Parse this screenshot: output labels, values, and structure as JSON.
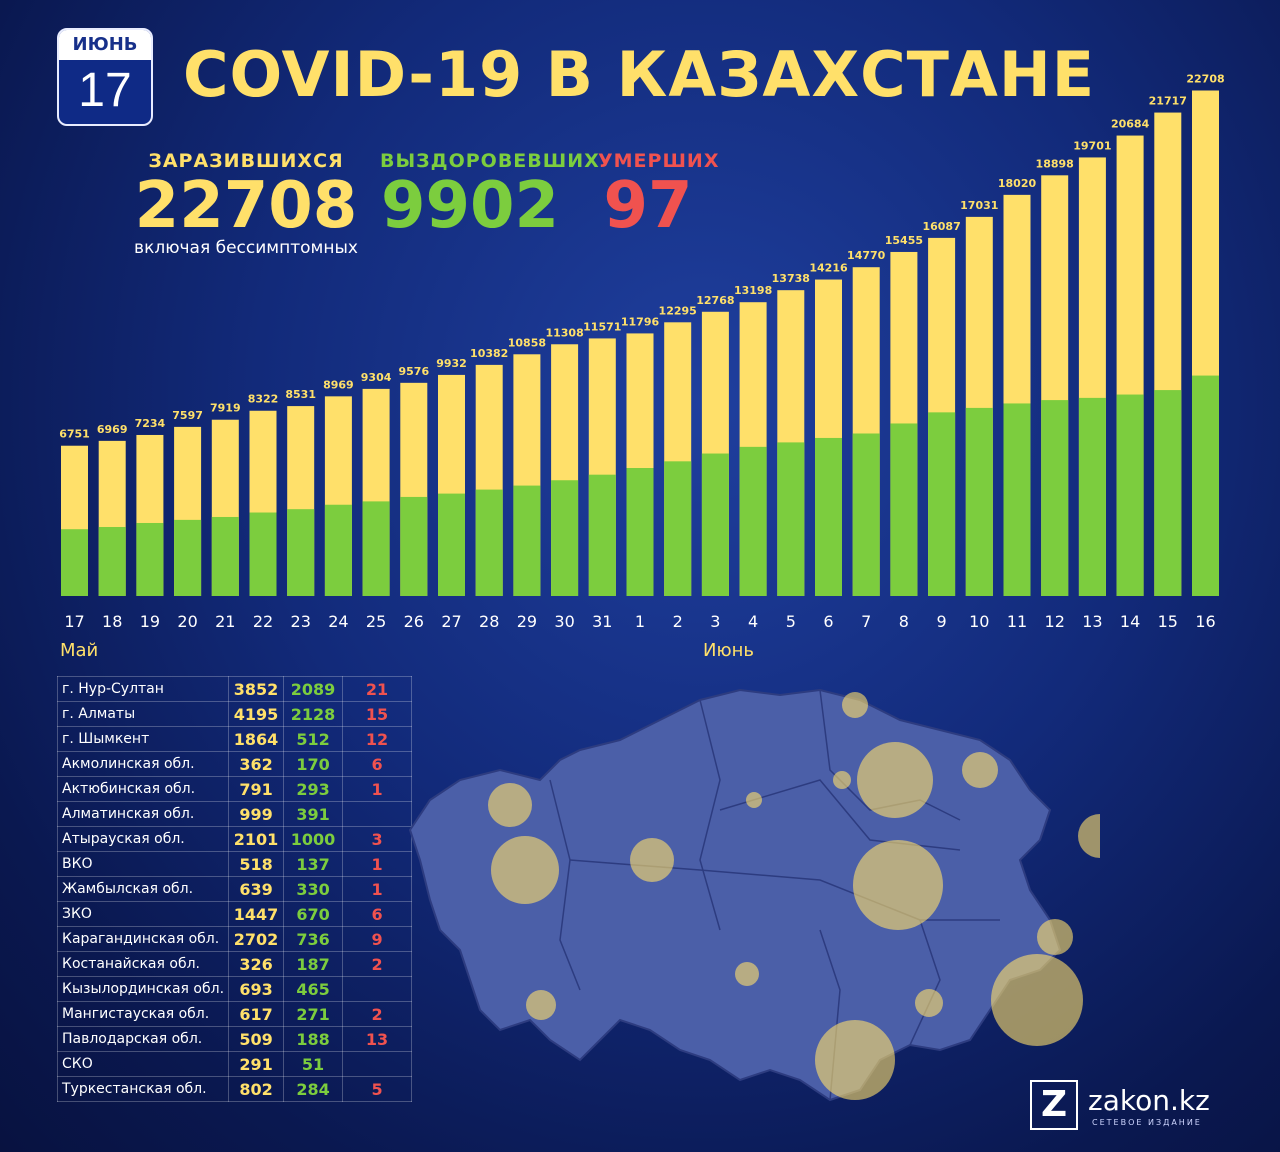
{
  "header": {
    "month": "ИЮНЬ",
    "day": "17",
    "title": "COVID-19 В КАЗАХСТАНЕ"
  },
  "stats": {
    "infected": {
      "label": "ЗАРАЗИВШИХСЯ",
      "value": "22708",
      "note": "включая бессимптомных"
    },
    "recovered": {
      "label": "ВЫЗДОРОВЕВШИХ",
      "value": "9902"
    },
    "deaths": {
      "label": "УМЕРШИХ",
      "value": "97"
    }
  },
  "axis": {
    "month1": "Май",
    "month2": "Июнь"
  },
  "colors": {
    "infected": "#ffe06a",
    "recovered": "#7ccd3e",
    "deaths": "#f0524f"
  },
  "chart_data": {
    "type": "bar",
    "categories": [
      "17",
      "18",
      "19",
      "20",
      "21",
      "22",
      "23",
      "24",
      "25",
      "26",
      "27",
      "28",
      "29",
      "30",
      "31",
      "1",
      "2",
      "3",
      "4",
      "5",
      "6",
      "7",
      "8",
      "9",
      "10",
      "11",
      "12",
      "13",
      "14",
      "15",
      "16"
    ],
    "series": [
      {
        "values": [
          6751,
          6969,
          7234,
          7597,
          7919,
          8322,
          8531,
          8969,
          9304,
          9576,
          9932,
          10382,
          10858,
          11308,
          11571,
          11796,
          12295,
          12768,
          13198,
          13738,
          14216,
          14770,
          15455,
          16087,
          17031,
          18020,
          18898,
          19701,
          20684,
          21717,
          22708
        ]
      },
      {
        "values": [
          3000,
          3100,
          3280,
          3420,
          3550,
          3750,
          3900,
          4100,
          4250,
          4450,
          4600,
          4780,
          4960,
          5200,
          5450,
          5750,
          6050,
          6400,
          6700,
          6900,
          7100,
          7300,
          7750,
          8250,
          8450,
          8650,
          8800,
          8900,
          9050,
          9250,
          9902
        ]
      }
    ],
    "ylim": [
      0,
      23000
    ]
  },
  "regions": [
    {
      "name": "г. Нур-Султан",
      "cases": "3852",
      "recovered": "2089",
      "deaths": "21"
    },
    {
      "name": "г. Алматы",
      "cases": "4195",
      "recovered": "2128",
      "deaths": "15"
    },
    {
      "name": "г. Шымкент",
      "cases": "1864",
      "recovered": "512",
      "deaths": "12"
    },
    {
      "name": "Акмолинская обл.",
      "cases": "362",
      "recovered": "170",
      "deaths": "6"
    },
    {
      "name": "Актюбинская обл.",
      "cases": "791",
      "recovered": "293",
      "deaths": "1"
    },
    {
      "name": "Алматинская обл.",
      "cases": "999",
      "recovered": "391",
      "deaths": ""
    },
    {
      "name": "Атырауская обл.",
      "cases": "2101",
      "recovered": "1000",
      "deaths": "3"
    },
    {
      "name": "ВКО",
      "cases": "518",
      "recovered": "137",
      "deaths": "1"
    },
    {
      "name": "Жамбылская обл.",
      "cases": "639",
      "recovered": "330",
      "deaths": "1"
    },
    {
      "name": "ЗКО",
      "cases": "1447",
      "recovered": "670",
      "deaths": "6"
    },
    {
      "name": "Карагандинская обл.",
      "cases": "2702",
      "recovered": "736",
      "deaths": "9"
    },
    {
      "name": "Костанайская обл.",
      "cases": "326",
      "recovered": "187",
      "deaths": "2"
    },
    {
      "name": "Кызылординская обл.",
      "cases": "693",
      "recovered": "465",
      "deaths": ""
    },
    {
      "name": "Мангистауская обл.",
      "cases": "617",
      "recovered": "271",
      "deaths": "2"
    },
    {
      "name": "Павлодарская обл.",
      "cases": "509",
      "recovered": "188",
      "deaths": "13"
    },
    {
      "name": "СКО",
      "cases": "291",
      "recovered": "51",
      "deaths": ""
    },
    {
      "name": "Туркестанская обл.",
      "cases": "802",
      "recovered": "284",
      "deaths": "5"
    }
  ],
  "logo": {
    "mark": "Z",
    "name": "zakon.kz",
    "sub": "СЕТЕВОЕ ИЗДАНИЕ"
  }
}
